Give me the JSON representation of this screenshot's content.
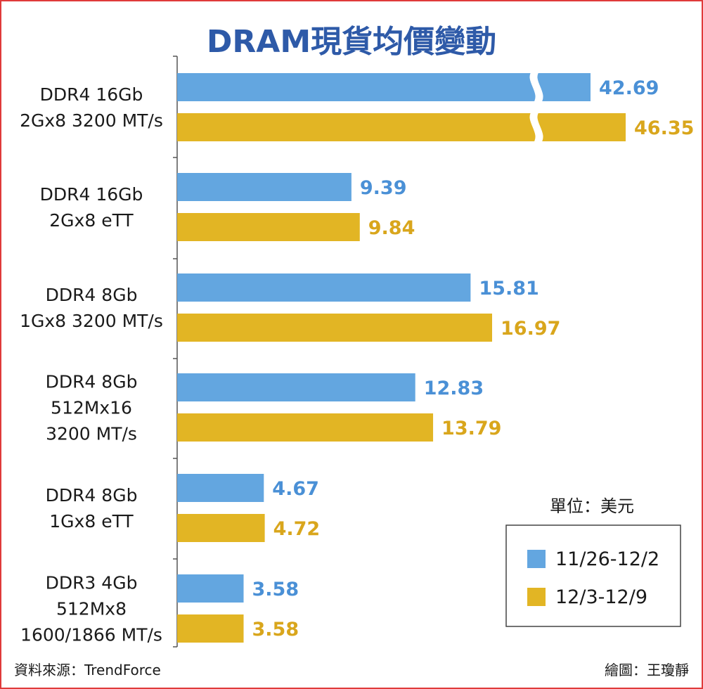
{
  "chart_data": {
    "type": "bar",
    "orientation": "horizontal",
    "title": "DRAM現貨均價變動",
    "unit_label": "單位：美元",
    "categories": [
      [
        "DDR4 16Gb",
        "2Gx8 3200 MT/s"
      ],
      [
        "DDR4 16Gb",
        "2Gx8 eTT"
      ],
      [
        "DDR4 8Gb",
        "1Gx8 3200 MT/s"
      ],
      [
        "DDR4 8Gb",
        "512Mx16",
        "3200 MT/s"
      ],
      [
        "DDR4 8Gb",
        "1Gx8 eTT"
      ],
      [
        "DDR3 4Gb",
        "512Mx8",
        "1600/1866 MT/s"
      ]
    ],
    "series": [
      {
        "name": "11/26-12/2",
        "color": "#63a6e0",
        "label_color": "#4a90d6",
        "values": [
          42.69,
          9.39,
          15.81,
          12.83,
          4.67,
          3.58
        ],
        "value_labels": [
          "42.69",
          "9.39",
          "15.81",
          "12.83",
          "4.67",
          "3.58"
        ]
      },
      {
        "name": "12/3-12/9",
        "color": "#e2b524",
        "label_color": "#d9a61c",
        "values": [
          46.35,
          9.84,
          16.97,
          13.79,
          4.72,
          3.58
        ],
        "value_labels": [
          "46.35",
          "9.84",
          "16.97",
          "13.79",
          "4.72",
          "3.58"
        ]
      }
    ],
    "axis_break": {
      "category_index": 0,
      "note": "first group bars are truncated with a break mark"
    },
    "legend_position": "bottom-right",
    "source": "資料來源：TrendForce",
    "credit": "繪圖：王瓊靜",
    "title_color": "#2e5aa8"
  }
}
